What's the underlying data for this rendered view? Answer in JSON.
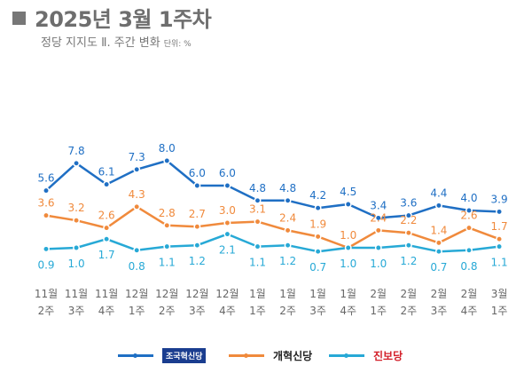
{
  "title": "2025년 3월 1주차",
  "subtitle": "정당 지지도 Ⅱ. 주간 변화",
  "unit": "단위: %",
  "chart_data": {
    "type": "line",
    "categories": [
      "11월 2주",
      "11월 3주",
      "11월 4주",
      "12월 1주",
      "12월 2주",
      "12월 3주",
      "12월 4주",
      "1월 1주",
      "1월 2주",
      "1월 3주",
      "1월 4주",
      "2월 1주",
      "2월 2주",
      "2월 3주",
      "2월 4주",
      "3월 1주"
    ],
    "series": [
      {
        "name": "조국혁신당",
        "color": "#1f6fc4",
        "values": [
          5.6,
          7.8,
          6.1,
          7.3,
          8.0,
          6.0,
          6.0,
          4.8,
          4.8,
          4.2,
          4.5,
          3.4,
          3.6,
          4.4,
          4.0,
          3.9
        ]
      },
      {
        "name": "개혁신당",
        "color": "#f08a3c",
        "values": [
          3.6,
          3.2,
          2.6,
          4.3,
          2.8,
          2.7,
          3.0,
          3.1,
          2.4,
          1.9,
          1.0,
          2.4,
          2.2,
          1.4,
          2.6,
          1.7
        ]
      },
      {
        "name": "진보당",
        "color": "#27a9d6",
        "values": [
          0.9,
          1.0,
          1.7,
          0.8,
          1.1,
          1.2,
          2.1,
          1.1,
          1.2,
          0.7,
          1.0,
          1.0,
          1.2,
          0.7,
          0.8,
          1.1
        ]
      }
    ],
    "legend_placement": "bottom",
    "grid": false
  }
}
